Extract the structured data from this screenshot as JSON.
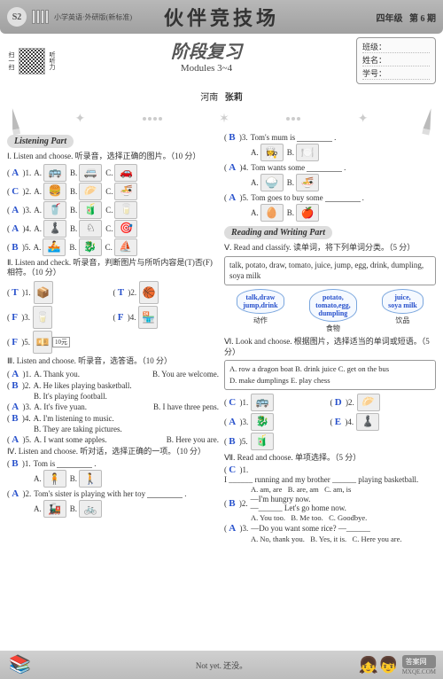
{
  "header": {
    "badge": "S2",
    "subhead": "小学英语·外研版(新标准)",
    "main_title": "伙伴竞技场",
    "grade": "四年级",
    "issue": "第 6 期"
  },
  "subheader": {
    "qr_side1": "扫一扫",
    "qr_side2": "听听力",
    "title_cn": "阶段复习",
    "title_en": "Modules 3~4",
    "info": {
      "class": "班级：",
      "name": "姓名：",
      "number": "学号："
    }
  },
  "author": {
    "region": "河南",
    "name": "张莉"
  },
  "listening_part_label": "Listening Part",
  "reading_part_label": "Reading and Writing Part",
  "s1": {
    "head": "Ⅰ. Listen and choose. 听录音，选择正确的图片。（10 分）",
    "rows": [
      {
        "ans": "A",
        "n": "1.",
        "a": "🚌",
        "b": "🚐",
        "c": "🚗"
      },
      {
        "ans": "C",
        "n": "2.",
        "a": "🍔",
        "b": "🥟",
        "c": "🍜"
      },
      {
        "ans": "A",
        "n": "3.",
        "a": "🥤",
        "b": "🧃",
        "c": "🥛"
      },
      {
        "ans": "A",
        "n": "4.",
        "a": "♟️",
        "b": "♘",
        "c": "🎯"
      },
      {
        "ans": "B",
        "n": "5.",
        "a": "🚣",
        "b": "🐉",
        "c": "⛵"
      }
    ],
    "opt_a": "A.",
    "opt_b": "B.",
    "opt_c": "C."
  },
  "s2": {
    "head": "Ⅱ. Listen and check. 听录音，判断图片与所听内容是(T)否(F)相符。（10 分）",
    "rows": [
      {
        "ans": "T",
        "n": "1.",
        "img": "📦"
      },
      {
        "ans": "T",
        "n": "2.",
        "img": "🏀"
      },
      {
        "ans": "F",
        "n": "3.",
        "img": "🥛"
      },
      {
        "ans": "F",
        "n": "4.",
        "img": "🏪"
      },
      {
        "ans": "F",
        "n": "5.",
        "img": "💴",
        "tag": "10元"
      }
    ]
  },
  "s3": {
    "head": "Ⅲ. Listen and choose. 听录音，选答语。（10 分）",
    "items": [
      {
        "ans": "A",
        "n": "1.",
        "a": "A. Thank you.",
        "b": "B. You are welcome."
      },
      {
        "ans": "B",
        "n": "2.",
        "a": "A. He likes playing basketball.",
        "b": "B. It's playing football."
      },
      {
        "ans": "A",
        "n": "3.",
        "a": "A. It's five yuan.",
        "b": "B. I have three pens."
      },
      {
        "ans": "B",
        "n": "4.",
        "a": "A. I'm listening to music.",
        "b": "B. They are taking pictures."
      },
      {
        "ans": "A",
        "n": "5.",
        "a": "A. I want some apples.",
        "b": "B. Here you are."
      }
    ]
  },
  "s4": {
    "head": "Ⅳ. Listen and choose. 听对话，选择正确的一项。（10 分）",
    "items": [
      {
        "ans": "B",
        "n": "1.",
        "t": "Tom is",
        "img_a": "🧍",
        "img_b": "🚶"
      },
      {
        "ans": "A",
        "n": "2.",
        "t": "Tom's sister is playing with her toy",
        "img_a": "🚂",
        "img_b": "🚲"
      },
      {
        "ans": "B",
        "n": "3.",
        "t": "Tom's mum is",
        "img_a": "👩‍🍳",
        "img_b": "🍽️"
      },
      {
        "ans": "A",
        "n": "4.",
        "t": "Tom wants some",
        "img_a": "🍚",
        "img_b": "🍜"
      },
      {
        "ans": "A",
        "n": "5.",
        "t": "Tom goes to buy some",
        "img_a": "🥚",
        "img_b": "🍎"
      }
    ],
    "opt_a": "A.",
    "opt_b": "B."
  },
  "s5": {
    "head": "Ⅴ. Read and classify. 读单词，将下列单词分类。（5 分）",
    "wordlist": "talk, potato, draw, tomato, juice, jump, egg, drink, dumpling, soya milk",
    "bubbles": [
      {
        "text": "talk,draw\njump,drink",
        "label": "动作"
      },
      {
        "text": "potato,\ntomato,egg,\ndumpling",
        "label": "食物"
      },
      {
        "text": "juice,\nsoya milk",
        "label": "饮品"
      }
    ]
  },
  "s6": {
    "head": "Ⅵ. Look and choose. 根据图片，选择适当的单词或短语。（5 分）",
    "choices": "A. row a dragon boat   B. drink juice   C. get on the bus\nD. make dumplings   E. play chess",
    "items": [
      {
        "ans": "C",
        "n": "1.",
        "img": "🚌"
      },
      {
        "ans": "D",
        "n": "2.",
        "img": "🥟"
      },
      {
        "ans": "A",
        "n": "3.",
        "img": "🐉"
      },
      {
        "ans": "E",
        "n": "4.",
        "img": "♟️"
      },
      {
        "ans": "B",
        "n": "5.",
        "img": "🧃"
      }
    ]
  },
  "s7": {
    "head": "Ⅶ. Read and choose. 单项选择。（5 分）",
    "items": [
      {
        "ans": "C",
        "n": "1.",
        "t": "I ______ running and my brother ______ playing basketball.",
        "a": "A. am, are",
        "b": "B. are, am",
        "c": "C. am, is"
      },
      {
        "ans": "B",
        "n": "2.",
        "t": "—I'm hungry now.\n—______ Let's go home now.",
        "a": "A. You too.",
        "b": "B. Me too.",
        "c": "C. Goodbye."
      },
      {
        "ans": "A",
        "n": "3.",
        "t": "—Do you want some rice?  —______",
        "a": "A. No, thank you.",
        "b": "B. Yes, it is.",
        "c": "C. Here you are."
      }
    ]
  },
  "footer": {
    "text": "Not yet. 还没。",
    "wm1": "答案网",
    "wm2": "MXQE.COM"
  }
}
